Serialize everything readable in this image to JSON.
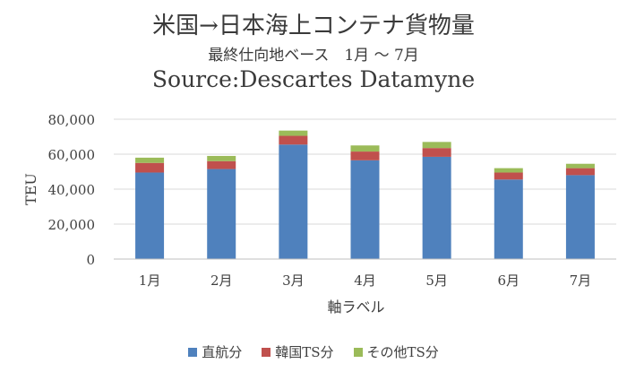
{
  "chart_data": {
    "type": "bar",
    "stacked": true,
    "title": "米国→日本海上コンテナ貨物量",
    "subtitle": "最終仕向地ベース　1月 ～ 7月",
    "source": "Source:Descartes Datamyne",
    "categories": [
      "1月",
      "2月",
      "3月",
      "4月",
      "5月",
      "6月",
      "7月"
    ],
    "series": [
      {
        "name": "直航分",
        "color": "#4f81bd",
        "values": [
          49500,
          51500,
          65500,
          56500,
          58500,
          45500,
          48000
        ]
      },
      {
        "name": "韓国TS分",
        "color": "#c0504d",
        "values": [
          5500,
          4500,
          5000,
          5000,
          5000,
          4000,
          4000
        ]
      },
      {
        "name": "その他TS分",
        "color": "#9bbb59",
        "values": [
          3000,
          3000,
          3000,
          3500,
          3500,
          2500,
          2500
        ]
      }
    ],
    "xlabel": "軸ラベル",
    "ylabel": "TEU",
    "ylim": [
      0,
      80000
    ],
    "yticks": [
      0,
      20000,
      40000,
      60000,
      80000
    ],
    "ytick_labels": [
      "0",
      "20,000",
      "40,000",
      "60,000",
      "80,000"
    ],
    "grid": true,
    "legend_position": "bottom"
  }
}
